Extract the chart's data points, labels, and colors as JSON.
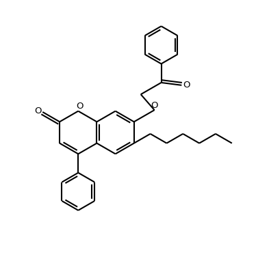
{
  "bg_color": "#ffffff",
  "line_color": "#000000",
  "line_width": 1.5,
  "figsize": [
    3.93,
    3.88
  ],
  "dpi": 100,
  "xlim": [
    0,
    10
  ],
  "ylim": [
    0,
    10
  ]
}
